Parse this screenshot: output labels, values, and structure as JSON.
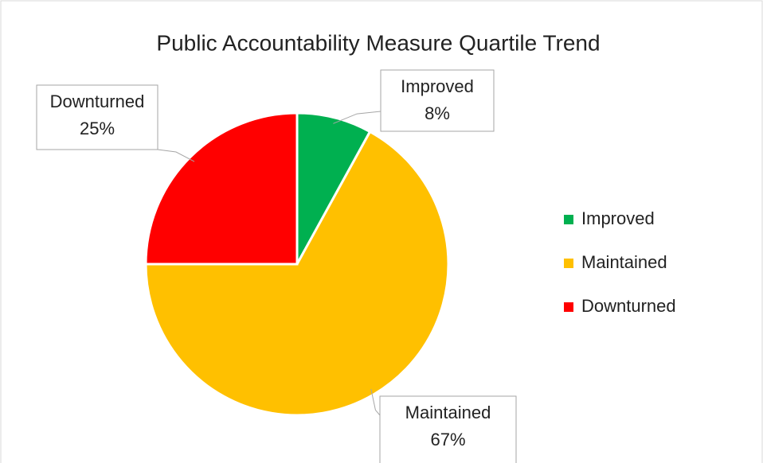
{
  "chart_data": {
    "type": "pie",
    "title": "Public Accountability Measure Quartile Trend",
    "categories": [
      "Improved",
      "Maintained",
      "Downturned"
    ],
    "values": [
      8,
      67,
      25
    ],
    "value_labels": [
      "8%",
      "67%",
      "25%"
    ],
    "colors": [
      "#00b050",
      "#ffc000",
      "#ff0000"
    ],
    "legend": "right"
  }
}
